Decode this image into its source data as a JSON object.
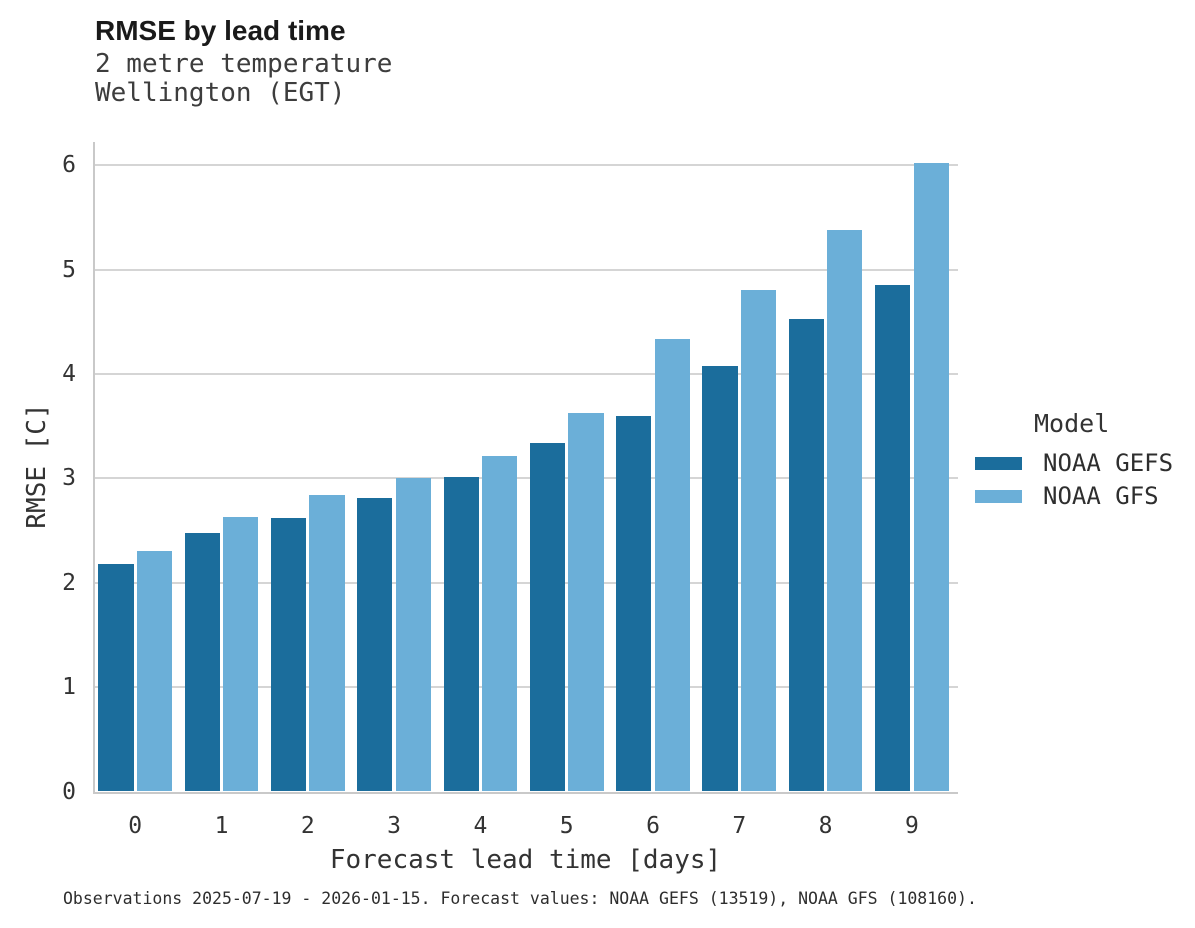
{
  "header": {
    "title": "RMSE by lead time",
    "subtitle_lines": [
      "2 metre temperature",
      "Wellington (EGT)"
    ]
  },
  "legend": {
    "title": "Model",
    "entries": [
      {
        "label": "NOAA GEFS",
        "color": "#1B6D9C"
      },
      {
        "label": "NOAA GFS",
        "color": "#6BAFD8"
      }
    ]
  },
  "footer": {
    "caption": "Observations 2025-07-19 - 2026-01-15. Forecast values: NOAA GEFS (13519), NOAA GFS (108160)."
  },
  "chart_data": {
    "type": "bar",
    "title": "RMSE by lead time",
    "subtitle": "2 metre temperature",
    "location": "Wellington (EGT)",
    "xlabel": "Forecast lead time [days]",
    "ylabel": "RMSE [C]",
    "categories": [
      "0",
      "1",
      "2",
      "3",
      "4",
      "5",
      "6",
      "7",
      "8",
      "9"
    ],
    "series": [
      {
        "name": "NOAA GEFS",
        "color": "#1B6D9C",
        "values": [
          2.18,
          2.48,
          2.62,
          2.81,
          3.01,
          3.34,
          3.6,
          4.08,
          4.53,
          4.85
        ]
      },
      {
        "name": "NOAA GFS",
        "color": "#6BAFD8",
        "values": [
          2.3,
          2.63,
          2.84,
          3.0,
          3.21,
          3.63,
          4.33,
          4.8,
          5.38,
          6.02
        ]
      }
    ],
    "ylim": [
      0,
      6.2
    ],
    "yticks": [
      0,
      1,
      2,
      3,
      4,
      5,
      6
    ],
    "grid": true,
    "grid_axis": "y",
    "legend_title": "Model",
    "legend_position": "right"
  }
}
